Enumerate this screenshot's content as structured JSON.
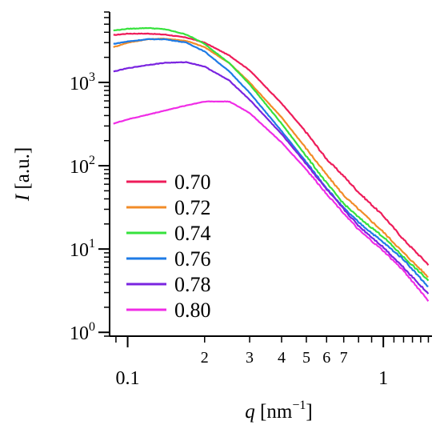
{
  "chart_data": {
    "type": "line",
    "xlabel": {
      "var": "q",
      "unit_prefix": "[nm",
      "unit_exp": "−1",
      "unit_suffix": "]"
    },
    "ylabel": {
      "var": "I",
      "unit": "[a.u.]"
    },
    "x_scale": "log",
    "y_scale": "log",
    "xlim": [
      0.085,
      1.55
    ],
    "ylim": [
      0.9,
      7000
    ],
    "x_major_ticks": [
      {
        "value": 0.1,
        "label": "0.1"
      },
      {
        "value": 1,
        "label": "1"
      }
    ],
    "x_minor_ticks": [
      {
        "value": 0.2,
        "label": "2"
      },
      {
        "value": 0.3,
        "label": "3"
      },
      {
        "value": 0.4,
        "label": "4"
      },
      {
        "value": 0.5,
        "label": "5"
      },
      {
        "value": 0.6,
        "label": "6"
      },
      {
        "value": 0.7,
        "label": "7"
      },
      {
        "value": 0.8,
        "label": ""
      },
      {
        "value": 0.9,
        "label": ""
      }
    ],
    "y_major_ticks": [
      {
        "value": 1,
        "base": "10",
        "exp": "0"
      },
      {
        "value": 10,
        "base": "10",
        "exp": "1"
      },
      {
        "value": 100,
        "base": "10",
        "exp": "2"
      },
      {
        "value": 1000,
        "base": "10",
        "exp": "3"
      }
    ],
    "legend_position": "bottom-left",
    "series": [
      {
        "name": "0.70",
        "color": "#ee1c5a",
        "x": [
          0.088,
          0.1,
          0.12,
          0.14,
          0.17,
          0.2,
          0.25,
          0.3,
          0.4,
          0.5,
          0.6,
          0.7,
          0.8,
          1.0,
          1.2,
          1.5
        ],
        "y": [
          3700,
          3850,
          3850,
          3750,
          3450,
          3000,
          2100,
          1400,
          560,
          250,
          120,
          75,
          48,
          25,
          13,
          6.5
        ]
      },
      {
        "name": "0.72",
        "color": "#f28c28",
        "x": [
          0.088,
          0.1,
          0.12,
          0.14,
          0.17,
          0.2,
          0.25,
          0.3,
          0.4,
          0.5,
          0.6,
          0.7,
          0.8,
          1.0,
          1.2,
          1.5
        ],
        "y": [
          2650,
          3000,
          3300,
          3350,
          3150,
          2650,
          1700,
          1000,
          380,
          160,
          78,
          44,
          30,
          16,
          9,
          4.6
        ]
      },
      {
        "name": "0.74",
        "color": "#36e23c",
        "x": [
          0.088,
          0.1,
          0.12,
          0.14,
          0.17,
          0.2,
          0.25,
          0.3,
          0.4,
          0.5,
          0.6,
          0.7,
          0.8,
          1.0,
          1.2,
          1.5
        ],
        "y": [
          4200,
          4400,
          4500,
          4350,
          3750,
          2900,
          1700,
          950,
          320,
          130,
          62,
          35,
          24,
          14,
          8,
          4.2
        ]
      },
      {
        "name": "0.76",
        "color": "#1e7be6",
        "x": [
          0.088,
          0.1,
          0.12,
          0.14,
          0.17,
          0.2,
          0.25,
          0.3,
          0.4,
          0.5,
          0.6,
          0.7,
          0.8,
          1.0,
          1.2,
          1.5
        ],
        "y": [
          2900,
          3100,
          3300,
          3300,
          3000,
          2350,
          1350,
          750,
          260,
          110,
          54,
          31,
          21,
          12,
          7.5,
          3.5
        ]
      },
      {
        "name": "0.78",
        "color": "#7a24e0",
        "x": [
          0.088,
          0.1,
          0.12,
          0.14,
          0.17,
          0.2,
          0.25,
          0.3,
          0.4,
          0.5,
          0.6,
          0.7,
          0.8,
          1.0,
          1.2,
          1.5
        ],
        "y": [
          1350,
          1480,
          1620,
          1720,
          1750,
          1550,
          1050,
          620,
          240,
          105,
          52,
          30,
          19,
          10.5,
          6,
          2.9
        ]
      },
      {
        "name": "0.80",
        "color": "#f02ce6",
        "x": [
          0.088,
          0.1,
          0.12,
          0.14,
          0.17,
          0.2,
          0.25,
          0.3,
          0.4,
          0.5,
          0.6,
          0.7,
          0.8,
          1.0,
          1.2,
          1.5
        ],
        "y": [
          320,
          360,
          410,
          460,
          530,
          590,
          590,
          430,
          190,
          90,
          46,
          27,
          17,
          9.5,
          5.5,
          2.4
        ]
      }
    ]
  }
}
